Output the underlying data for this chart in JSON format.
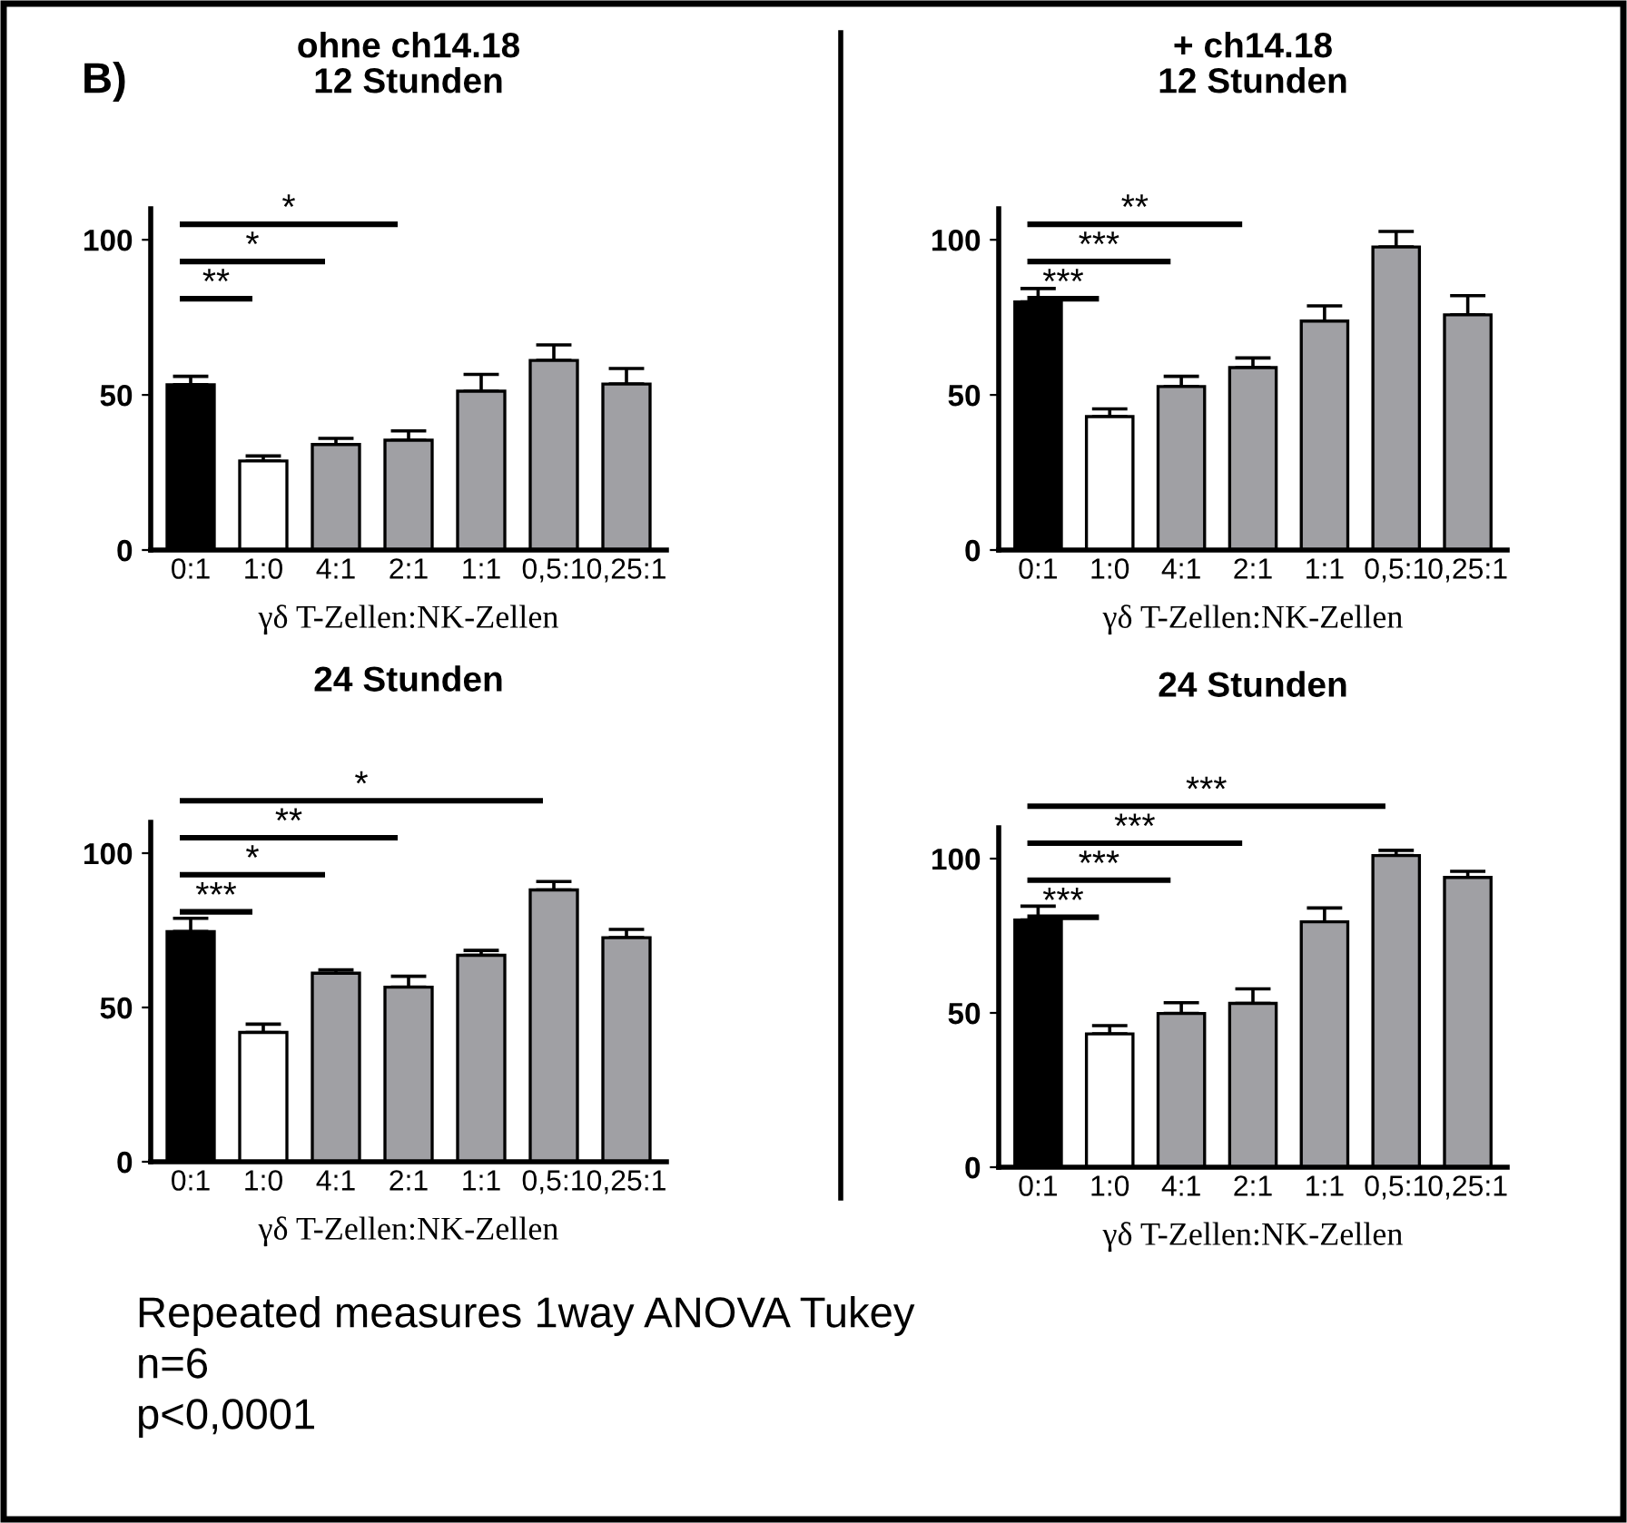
{
  "chart_data": [
    {
      "type": "bar",
      "title": "ohne ch14.18",
      "subtitle": "12 Stunden",
      "xlabel": "γδ T-Zellen:NK-Zellen",
      "categories": [
        "0:1",
        "1:0",
        "4:1",
        "2:1",
        "1:1",
        "0,5:1",
        "0,25:1"
      ],
      "values": [
        53.3,
        28.7,
        34,
        35.4,
        51.2,
        61.1,
        53.5
      ],
      "errors": [
        2.7,
        1.6,
        2,
        3,
        5.4,
        5,
        5
      ],
      "colors": [
        "#000000",
        "#ffffff",
        "#a0a0a4",
        "#a0a0a4",
        "#a0a0a4",
        "#a0a0a4",
        "#a0a0a4"
      ],
      "ylim": [
        0,
        110
      ],
      "yticks": [
        0,
        50,
        100
      ],
      "grid": false,
      "legend": false,
      "annotations": [
        "B)",
        "**",
        "*",
        "*"
      ]
    },
    {
      "type": "bar",
      "title": "+ ch14.18",
      "subtitle": "12 Stunden",
      "xlabel": "γδ T-Zellen:NK-Zellen",
      "categories": [
        "0:1",
        "1:0",
        "4:1",
        "2:1",
        "1:1",
        "0,5:1",
        "0,25:1"
      ],
      "values": [
        80,
        43,
        52.7,
        58.8,
        73.8,
        97.7,
        75.8
      ],
      "errors": [
        4.3,
        2.5,
        3.3,
        3.1,
        4.9,
        5,
        6.2
      ],
      "colors": [
        "#000000",
        "#ffffff",
        "#a0a0a4",
        "#a0a0a4",
        "#a0a0a4",
        "#a0a0a4",
        "#a0a0a4"
      ],
      "ylim": [
        0,
        110
      ],
      "yticks": [
        0,
        50,
        100
      ],
      "grid": false,
      "legend": false,
      "annotations": [
        "***",
        "***",
        "**"
      ]
    },
    {
      "type": "bar",
      "title": "24 Stunden",
      "xlabel": "γδ T-Zellen:NK-Zellen",
      "categories": [
        "0:1",
        "1:0",
        "4:1",
        "2:1",
        "1:1",
        "0,5:1",
        "0,25:1"
      ],
      "values": [
        74.6,
        41.9,
        61.1,
        56.6,
        66.9,
        88.1,
        72.6
      ],
      "errors": [
        4.3,
        2.7,
        1.1,
        3.5,
        1.6,
        2.7,
        2.7
      ],
      "colors": [
        "#000000",
        "#ffffff",
        "#a0a0a4",
        "#a0a0a4",
        "#a0a0a4",
        "#a0a0a4",
        "#a0a0a4"
      ],
      "ylim": [
        0,
        110
      ],
      "yticks": [
        0,
        50,
        100
      ],
      "grid": false,
      "legend": false,
      "annotations": [
        "***",
        "*",
        "**",
        "*",
        "Repeated measures 1way ANOVA Tukey",
        "n=6",
        "p<0,0001"
      ]
    },
    {
      "type": "bar",
      "title": "24 Stunden",
      "xlabel": "γδ T-Zellen:NK-Zellen",
      "categories": [
        "0:1",
        "1:0",
        "4:1",
        "2:1",
        "1:1",
        "0,5:1",
        "0,25:1"
      ],
      "values": [
        80.1,
        43.2,
        49.8,
        53.1,
        79.5,
        101,
        93.9
      ],
      "errors": [
        4.5,
        2.7,
        3.5,
        4.7,
        4.5,
        1.7,
        2
      ],
      "colors": [
        "#000000",
        "#ffffff",
        "#a0a0a4",
        "#a0a0a4",
        "#a0a0a4",
        "#a0a0a4",
        "#a0a0a4"
      ],
      "ylim": [
        0,
        110
      ],
      "yticks": [
        0,
        50,
        100
      ],
      "grid": false,
      "legend": false,
      "annotations": [
        "***",
        "***",
        "***",
        "***"
      ]
    }
  ]
}
